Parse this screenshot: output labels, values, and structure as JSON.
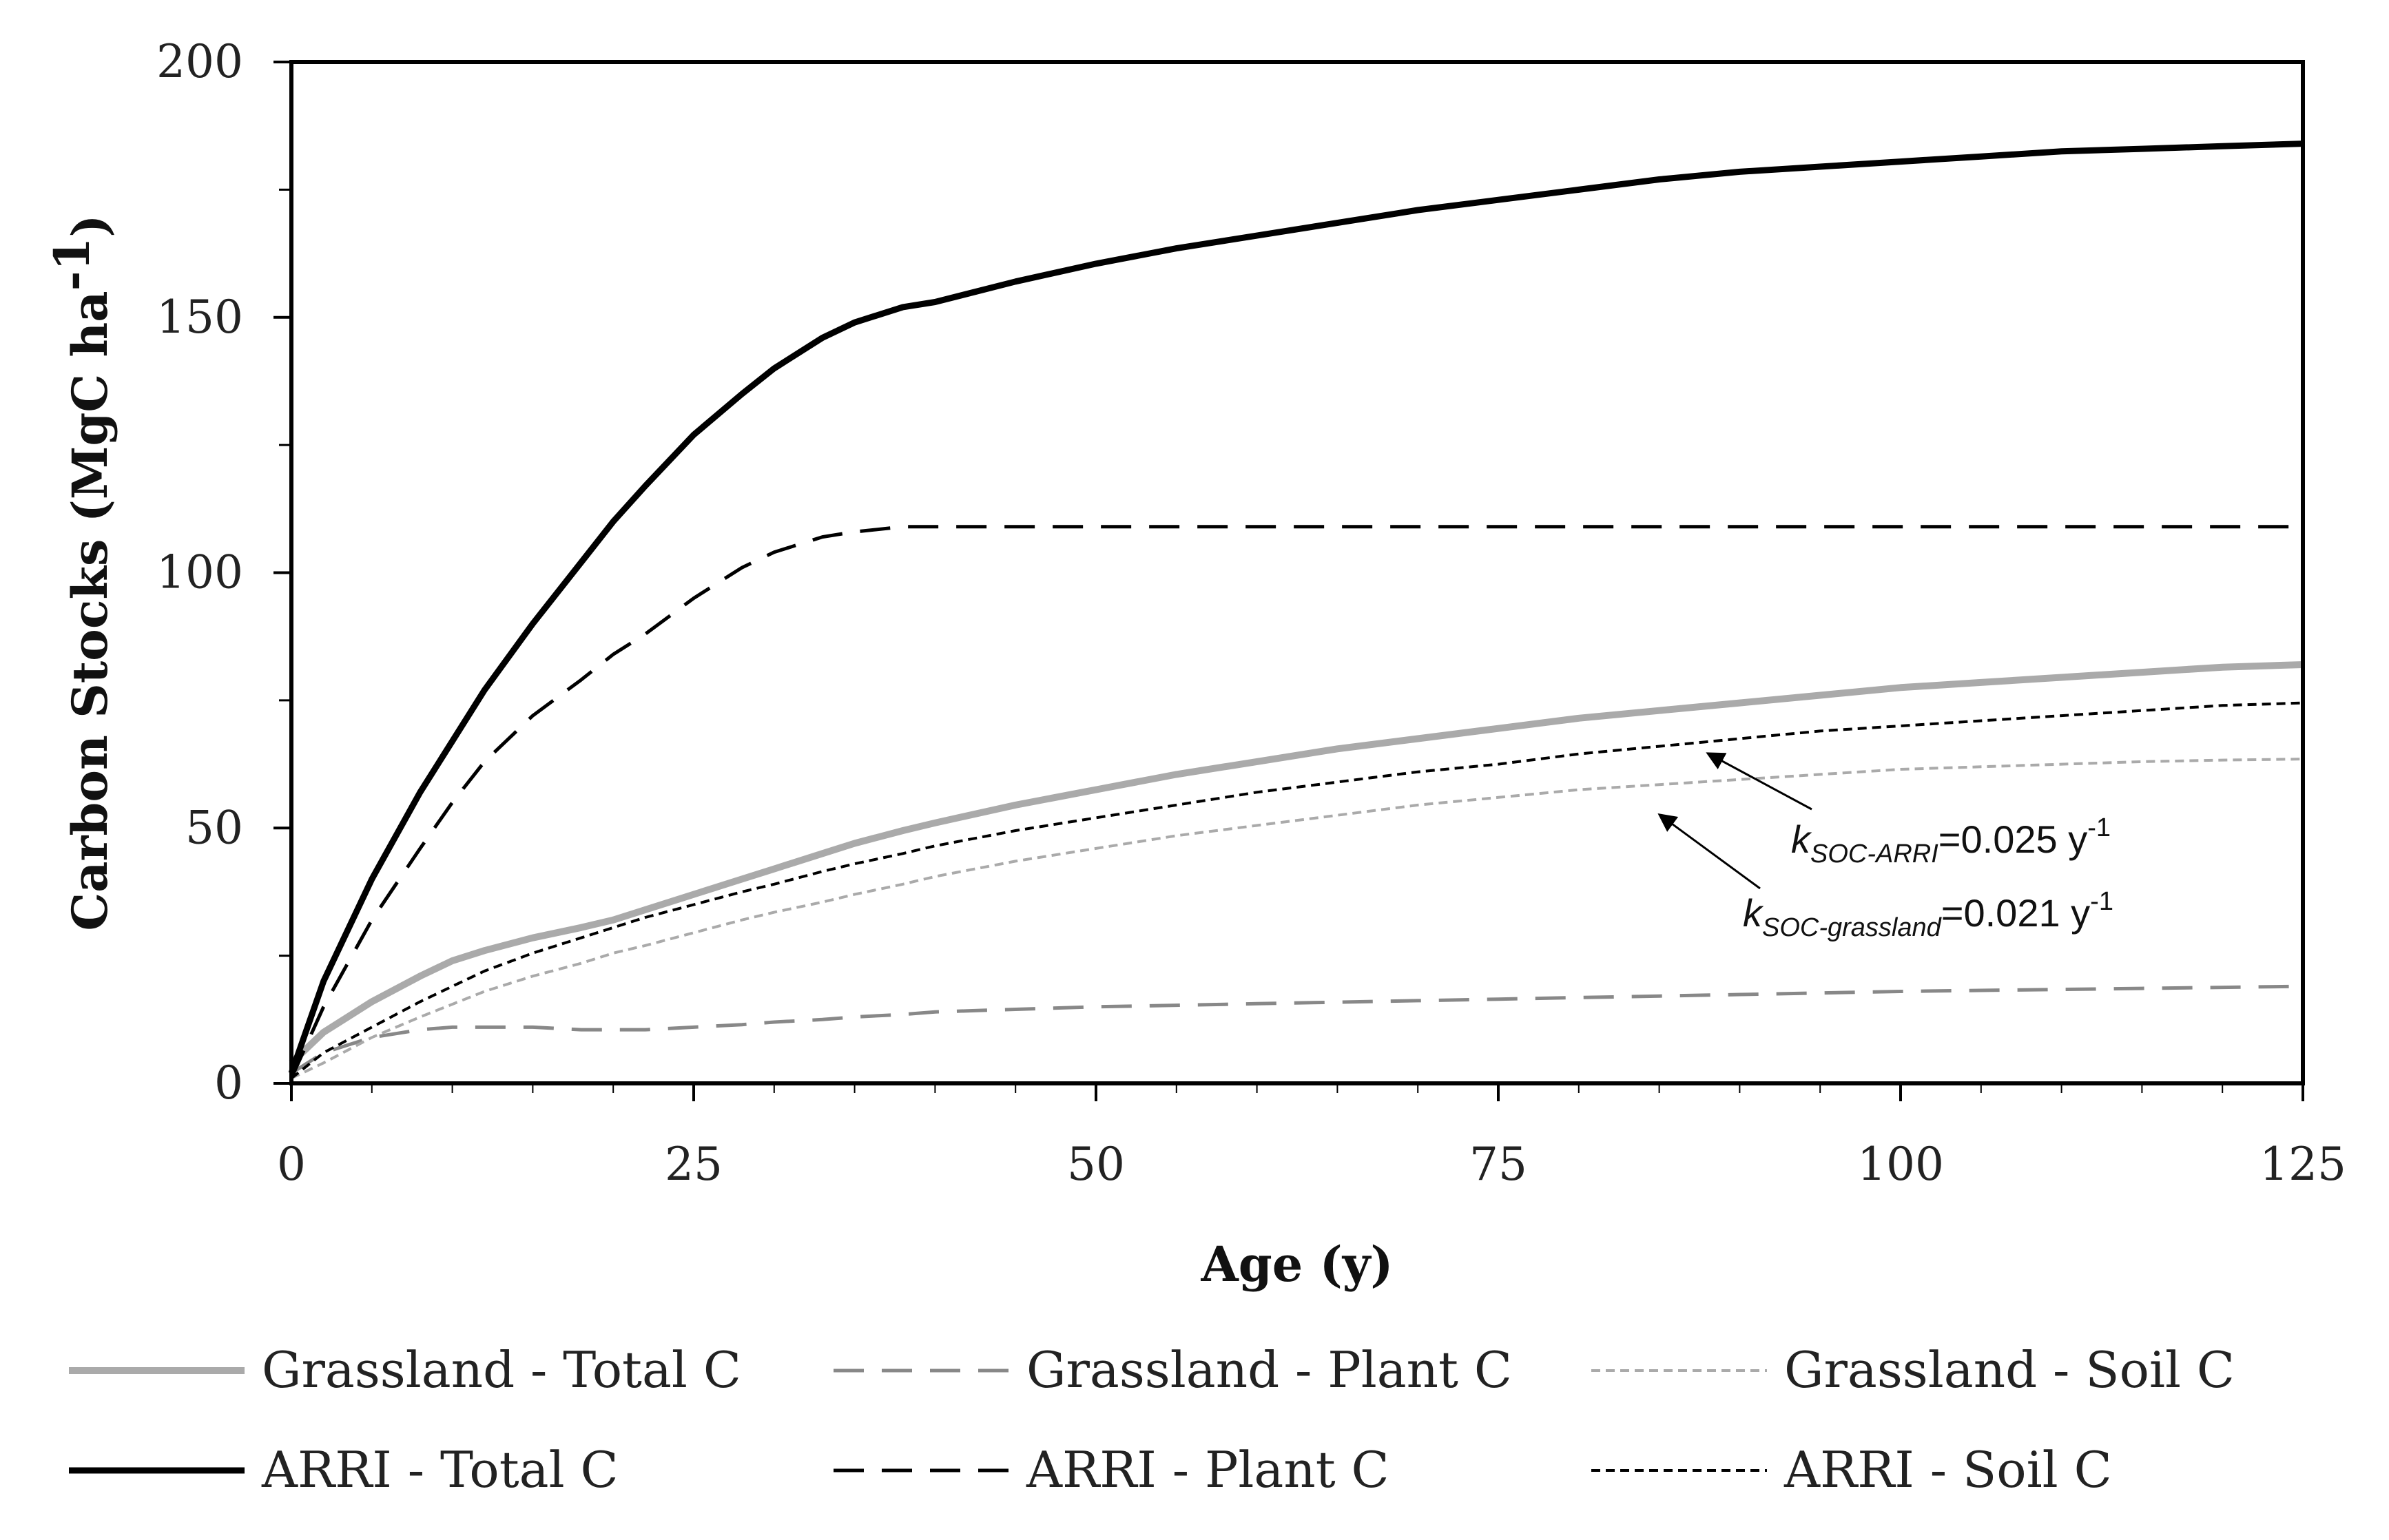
{
  "chart_data": {
    "type": "line",
    "title": "",
    "xlabel": "Age (y)",
    "ylabel": "Carbon Stocks (MgC ha",
    "ylabel_sup": "-1",
    "ylabel_close": ")",
    "xlim": [
      0,
      125
    ],
    "ylim": [
      0,
      200
    ],
    "xticks": [
      0,
      25,
      50,
      75,
      100,
      125
    ],
    "yticks": [
      0,
      50,
      100,
      150,
      200
    ],
    "grid": false,
    "x": [
      0,
      2,
      5,
      8,
      10,
      12,
      15,
      18,
      20,
      22,
      25,
      28,
      30,
      33,
      35,
      38,
      40,
      45,
      50,
      55,
      60,
      65,
      70,
      75,
      80,
      85,
      90,
      95,
      100,
      105,
      110,
      115,
      120,
      125
    ],
    "series": [
      {
        "name": "Grassland - Total C",
        "color": "#aaaaaa",
        "style": "solid-thick",
        "values": [
          4,
          10,
          16,
          21,
          24,
          26,
          28.5,
          30.5,
          32,
          34,
          37,
          40,
          42,
          45,
          47,
          49.5,
          51,
          54.5,
          57.5,
          60.5,
          63,
          65.5,
          67.5,
          69.5,
          71.5,
          73,
          74.5,
          76,
          77.5,
          78.5,
          79.5,
          80.5,
          81.5,
          82
        ]
      },
      {
        "name": "Grassland - Plant C",
        "color": "#888888",
        "style": "long-dash",
        "values": [
          2,
          6,
          9,
          10.5,
          11,
          11,
          11,
          10.5,
          10.5,
          10.5,
          11,
          11.5,
          12,
          12.5,
          13,
          13.5,
          14,
          14.5,
          15,
          15.3,
          15.6,
          15.9,
          16.2,
          16.5,
          16.8,
          17.1,
          17.4,
          17.7,
          18,
          18.2,
          18.4,
          18.6,
          18.8,
          19
        ]
      },
      {
        "name": "Grassland - Soil C",
        "color": "#aaaaaa",
        "style": "short-dash",
        "values": [
          1,
          4,
          9,
          13,
          15.5,
          18,
          21,
          23.5,
          25.5,
          27,
          29.5,
          32,
          33.5,
          35.5,
          37,
          39,
          40.5,
          43.5,
          46,
          48.5,
          50.5,
          52.5,
          54.5,
          56,
          57.5,
          58.5,
          59.5,
          60.5,
          61.5,
          62,
          62.5,
          63,
          63.3,
          63.5
        ]
      },
      {
        "name": "ARRI - Total C",
        "color": "#000000",
        "style": "solid-thick",
        "values": [
          2,
          20,
          40,
          57,
          67,
          77,
          90,
          102,
          110,
          117,
          127,
          135,
          140,
          146,
          149,
          152,
          153,
          157,
          160.5,
          163.5,
          166,
          168.5,
          171,
          173,
          175,
          177,
          178.5,
          179.5,
          180.5,
          181.5,
          182.5,
          183,
          183.5,
          184
        ]
      },
      {
        "name": "ARRI - Plant C",
        "color": "#000000",
        "style": "long-dash",
        "values": [
          1,
          15,
          32,
          46,
          55,
          63,
          72,
          79,
          84,
          88,
          95,
          101,
          104,
          107,
          108,
          109,
          109,
          109,
          109,
          109,
          109,
          109,
          109,
          109,
          109,
          109,
          109,
          109,
          109,
          109,
          109,
          109,
          109,
          109
        ]
      },
      {
        "name": "ARRI - Soil C",
        "color": "#000000",
        "style": "short-dash",
        "values": [
          1,
          6,
          11,
          16,
          19,
          22,
          25.5,
          28.5,
          30.5,
          32.5,
          35,
          37.5,
          39,
          41.5,
          43,
          45,
          46.5,
          49.5,
          52,
          54.5,
          57,
          59,
          61,
          62.5,
          64.5,
          66,
          67.5,
          69,
          70,
          71,
          72,
          73,
          74,
          74.5
        ]
      }
    ],
    "annotations": [
      {
        "main": "k",
        "sub": "SOC-ARRI",
        "rest": "=0.025 y",
        "sup": "-1",
        "target": [
          88,
          66
        ]
      },
      {
        "main": "k",
        "sub": "SOC-grassland",
        "rest": "=0.021 y",
        "sup": "-1",
        "target": [
          85,
          54
        ]
      }
    ],
    "legend_position": "bottom"
  }
}
